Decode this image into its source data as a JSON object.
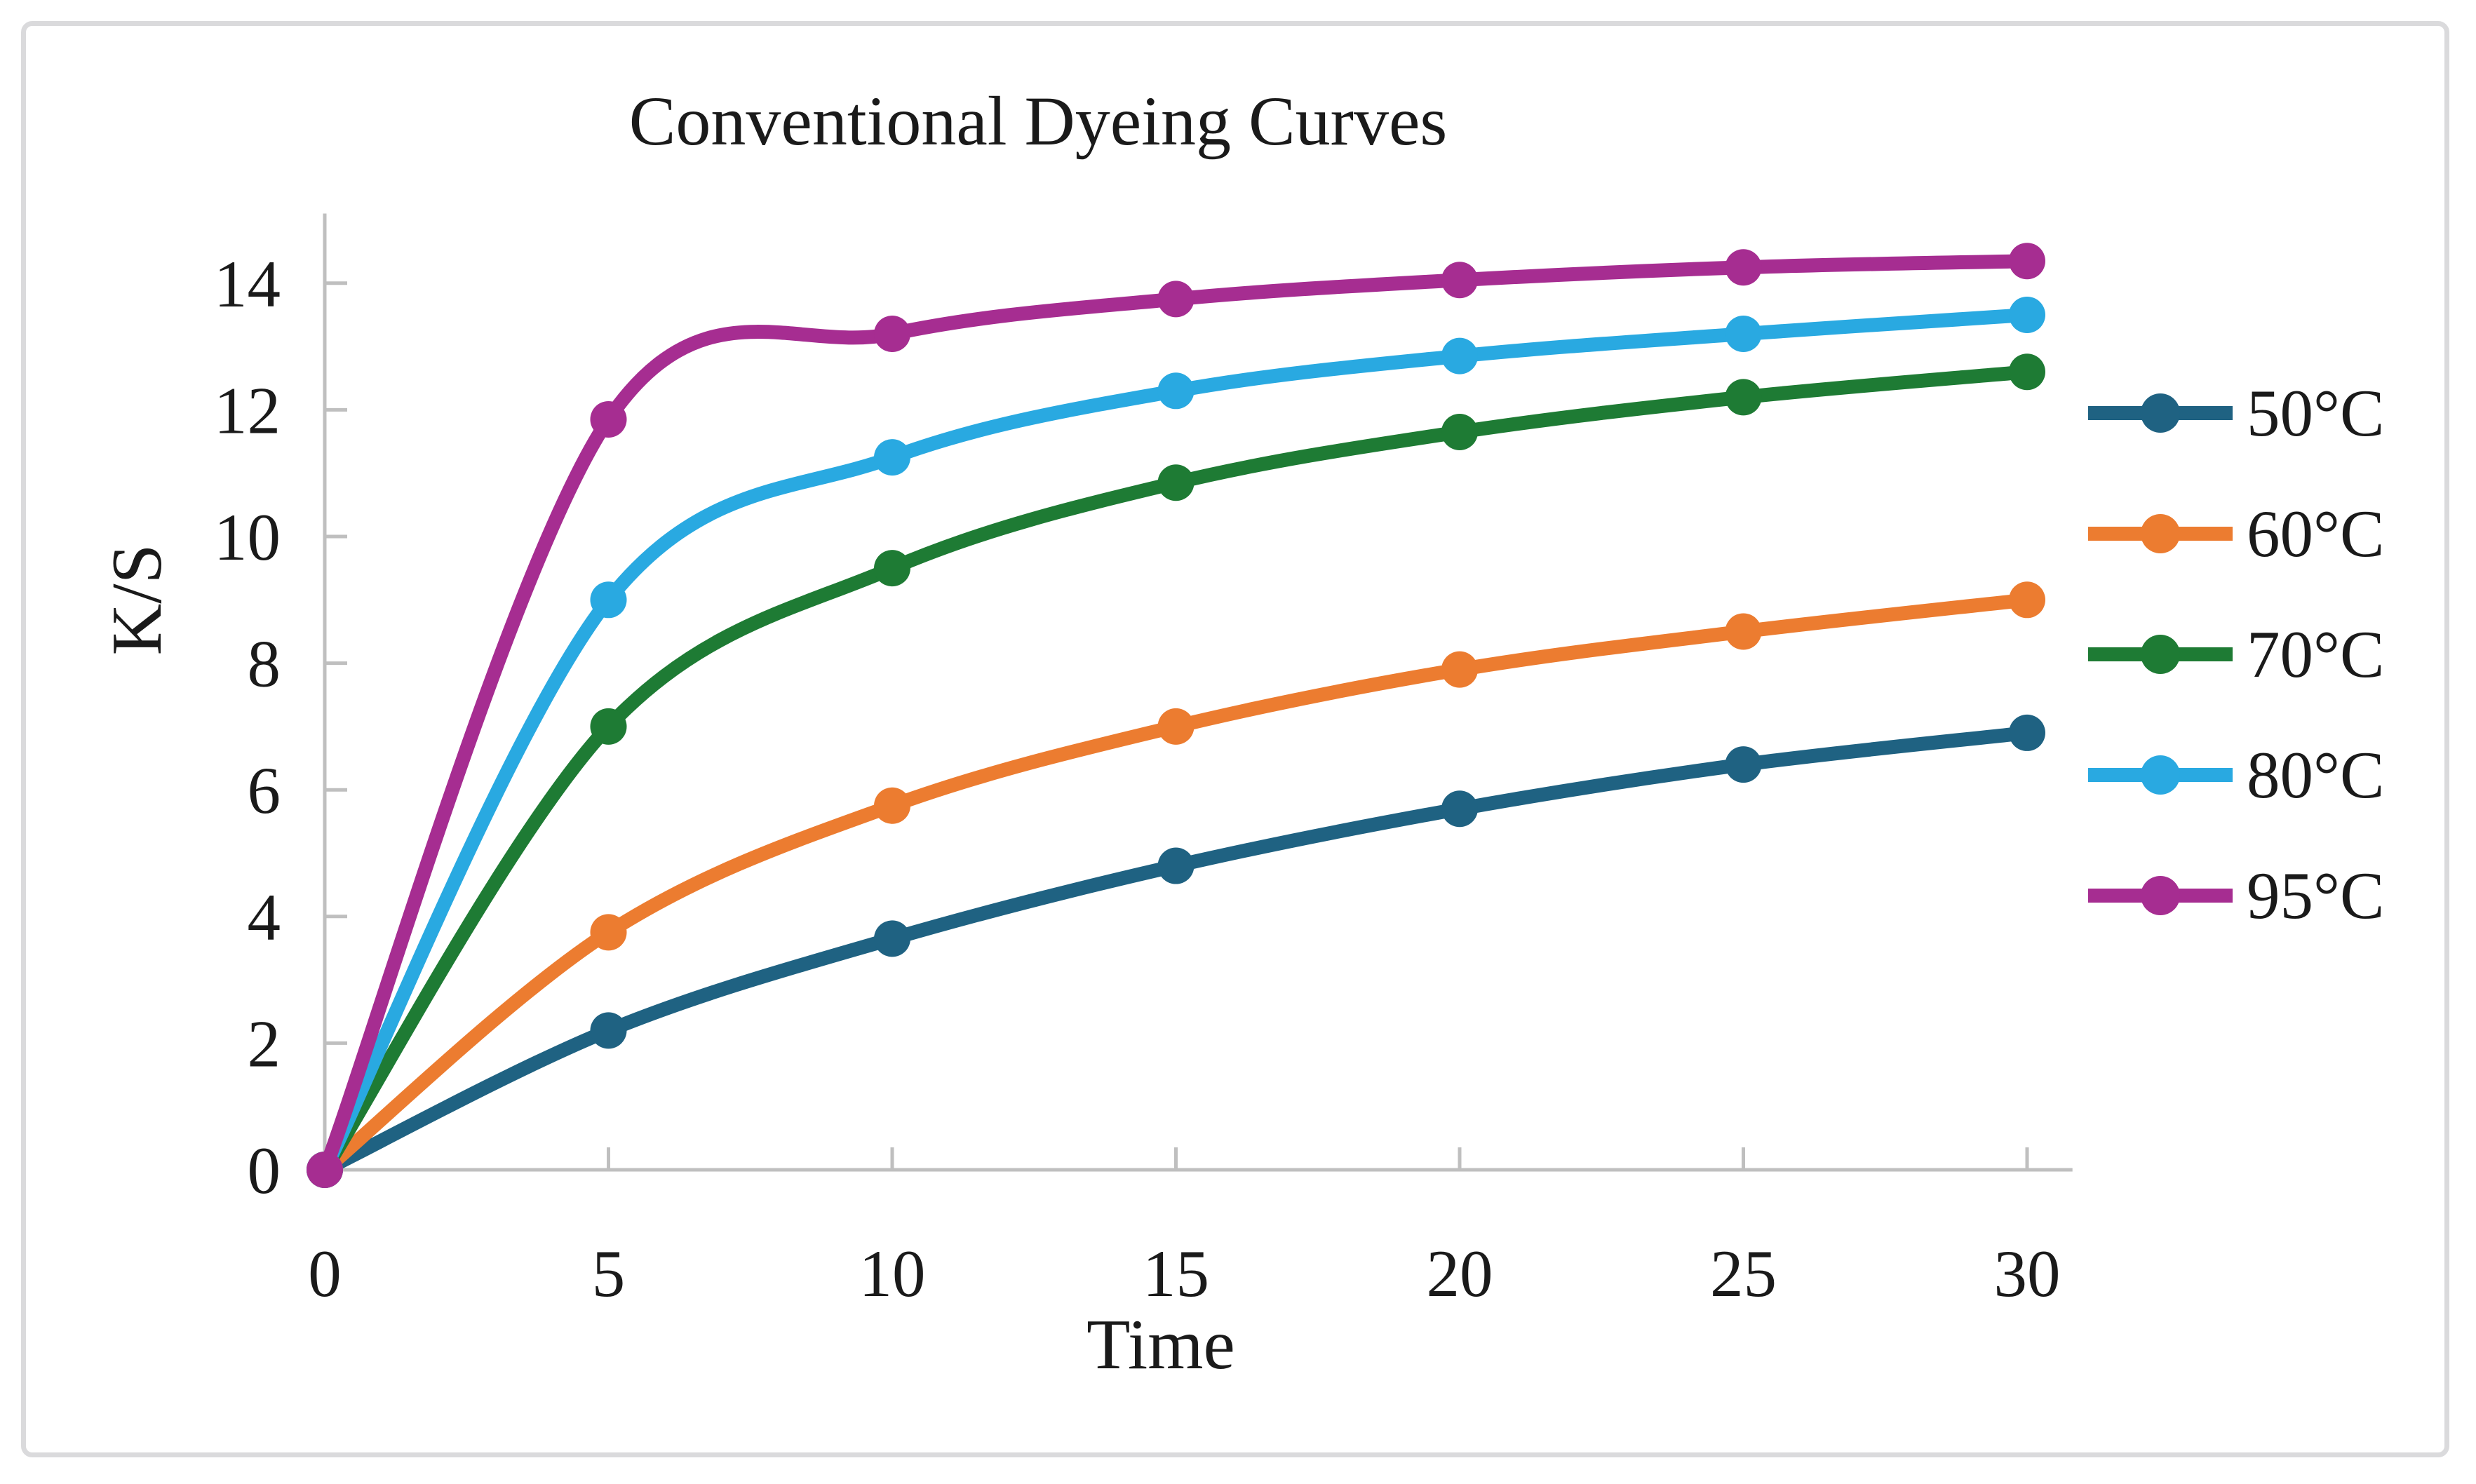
{
  "figure": {
    "background": "#ffffff",
    "border_color": "#dadadc"
  },
  "chart_data": {
    "type": "line",
    "title": "Conventional Dyeing Curves",
    "xlabel": "Time",
    "ylabel": "K/S",
    "x": [
      0,
      5,
      10,
      15,
      20,
      25,
      30
    ],
    "x_ticks": [
      "0",
      "5",
      "10",
      "15",
      "20",
      "25",
      "30"
    ],
    "y_ticks": [
      "0",
      "2",
      "4",
      "6",
      "8",
      "10",
      "12",
      "14"
    ],
    "y_tick_values": [
      0,
      2,
      4,
      6,
      8,
      10,
      12,
      14
    ],
    "xlim": [
      0,
      30.8
    ],
    "ylim": [
      0,
      15.1
    ],
    "grid": false,
    "legend_position": "right",
    "axis_color": "#bfbfbf",
    "text_color": "#1a1a1a",
    "line_smoothing": "spline",
    "series": [
      {
        "name": "50°C",
        "color": "#1f6282",
        "values": [
          0,
          2.2,
          3.65,
          4.8,
          5.7,
          6.4,
          6.9
        ]
      },
      {
        "name": "60°C",
        "color": "#ec7c30",
        "values": [
          0,
          3.75,
          5.75,
          7.0,
          7.9,
          8.5,
          9.0
        ]
      },
      {
        "name": "70°C",
        "color": "#1e7b34",
        "values": [
          0,
          7.0,
          9.5,
          10.85,
          11.65,
          12.2,
          12.6
        ]
      },
      {
        "name": "80°C",
        "color": "#29a9e1",
        "values": [
          0,
          9.0,
          11.25,
          12.3,
          12.85,
          13.2,
          13.5
        ]
      },
      {
        "name": "95°C",
        "color": "#a62d91",
        "values": [
          0,
          11.85,
          13.2,
          13.75,
          14.05,
          14.25,
          14.35
        ]
      }
    ]
  }
}
